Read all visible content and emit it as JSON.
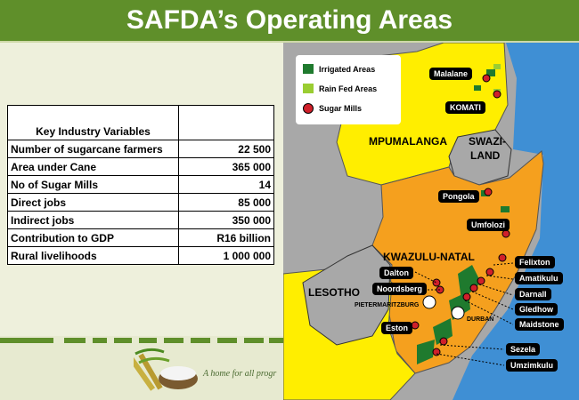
{
  "title": "SAFDA’s Operating Areas",
  "table": {
    "header": "Key Industry Variables",
    "rows": [
      {
        "label": "Number of sugarcane farmers",
        "value": "22 500"
      },
      {
        "label": "Area under Cane",
        "value": "365 000"
      },
      {
        "label": "No of Sugar Mills",
        "value": "14"
      },
      {
        "label": "Direct jobs",
        "value": "85 000"
      },
      {
        "label": "Indirect jobs",
        "value": "350 000"
      },
      {
        "label": "Contribution to GDP",
        "value": "R16 billion"
      },
      {
        "label": "Rural livelihoods",
        "value": "1 000 000"
      }
    ]
  },
  "tagline": "A home for all progr",
  "legend": {
    "irrigated": "Irrigated Areas",
    "rainfed": "Rain Fed Areas",
    "mills": "Sugar Mills"
  },
  "regions": {
    "mpumalanga": "MPUMALANGA",
    "swaziland_1": "SWAZI-",
    "swaziland_2": "LAND",
    "kwazulu": "KWAZULU-NATAL",
    "lesotho": "LESOTHO",
    "pietermaritzburg": "PIETERMARITZBURG",
    "durban": "DURBAN"
  },
  "mills": {
    "malalane": "Malalane",
    "komati": "KOMATI",
    "pongola": "Pongola",
    "umfolozi": "Umfolozi",
    "felixton": "Felixton",
    "amatikulu": "Amatikulu",
    "darnall": "Darnall",
    "gledhow": "Gledhow",
    "maidstone": "Maidstone",
    "dalton": "Dalton",
    "noodsberg": "Noordsberg",
    "eston": "Eston",
    "sezela": "Sezela",
    "umzimkulu": "Umzimkulu"
  },
  "colors": {
    "title_bg": "#5f8f2a",
    "ocean": "#3f8fd4",
    "yellow": "#ffee00",
    "orange": "#f5a01e",
    "grey": "#a8a8a8",
    "irrigated": "#1f7a2e",
    "rainfed": "#9acd32",
    "mill": "#d0202a"
  }
}
